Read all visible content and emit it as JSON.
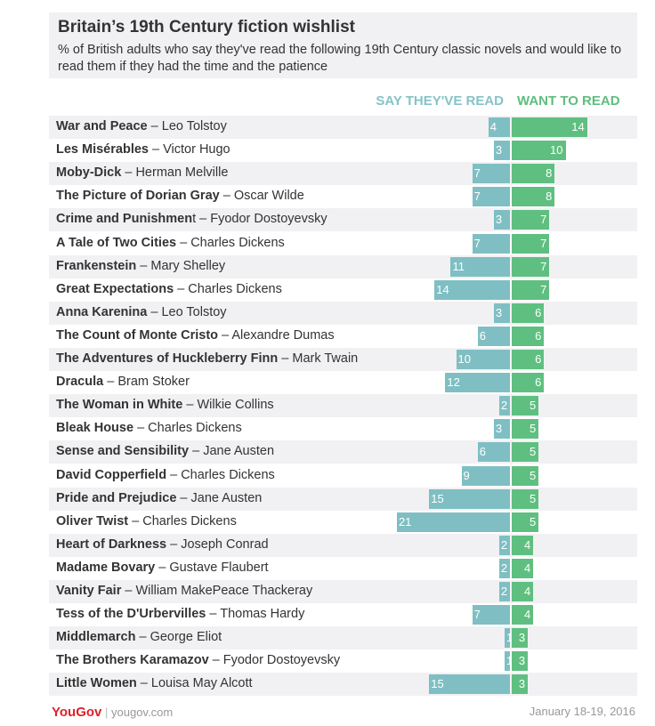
{
  "chart_data": {
    "type": "bar",
    "title": "Britain’s 19th Century fiction wishlist",
    "subtitle": "% of British adults who say they've read the following 19th Century classic novels and would like to read them if they had the time and the patience",
    "legend": [
      "SAY THEY'VE READ",
      "WANT TO READ"
    ],
    "colors": {
      "read": "#7fbfc3",
      "want": "#5fbf80",
      "read_header": "#86c3c7",
      "want_header": "#5fbd7f"
    },
    "categories": [
      {
        "title": "War and Peace",
        "author": "Leo Tolstoy"
      },
      {
        "title": "Les Misérables",
        "author": "Victor Hugo"
      },
      {
        "title": "Moby-Dick",
        "author": "Herman Melville"
      },
      {
        "title": "The Picture of Dorian Gray",
        "author": "Oscar Wilde"
      },
      {
        "title": "Crime and Punishmen",
        "author": "t – Fyodor Dostoyevsky",
        "sep": ""
      },
      {
        "title": "A Tale of Two Cities",
        "author": "Charles Dickens"
      },
      {
        "title": "Frankenstein",
        "author": "Mary Shelley"
      },
      {
        "title": "Great Expectations",
        "author": "Charles Dickens"
      },
      {
        "title": "Anna Karenina",
        "author": "Leo Tolstoy"
      },
      {
        "title": "The Count of Monte Cristo",
        "author": "Alexandre Dumas"
      },
      {
        "title": "The Adventures of Huckleberry Finn",
        "author": "Mark Twain"
      },
      {
        "title": "Dracula",
        "author": "Bram Stoker"
      },
      {
        "title": "The Woman in White",
        "author": "Wilkie Collins"
      },
      {
        "title": "Bleak House",
        "author": "Charles Dickens"
      },
      {
        "title": "Sense and Sensibility",
        "author": "Jane Austen"
      },
      {
        "title": "David Copperfield",
        "author": "Charles Dickens"
      },
      {
        "title": "Pride and Prejudice",
        "author": "Jane Austen"
      },
      {
        "title": "Oliver Twist",
        "author": "Charles Dickens"
      },
      {
        "title": "Heart of Darkness",
        "author": "Joseph Conrad"
      },
      {
        "title": "Madame Bovary",
        "author": "Gustave Flaubert"
      },
      {
        "title": "Vanity Fair",
        "author": "William MakePeace Thackeray"
      },
      {
        "title": "Tess of the D'Urbervilles",
        "author": "Thomas Hardy"
      },
      {
        "title": "Middlemarch",
        "author": "George Eliot"
      },
      {
        "title": "The Brothers Karamazov",
        "author": "Fyodor Dostoyevsky"
      },
      {
        "title": "Little Women",
        "author": "Louisa May Alcott"
      }
    ],
    "series": [
      {
        "name": "SAY THEY'VE READ",
        "values": [
          4,
          3,
          7,
          7,
          3,
          7,
          11,
          14,
          3,
          6,
          10,
          12,
          2,
          3,
          6,
          9,
          15,
          21,
          2,
          2,
          2,
          7,
          1,
          1,
          15
        ]
      },
      {
        "name": "WANT TO READ",
        "values": [
          14,
          10,
          8,
          8,
          7,
          7,
          7,
          7,
          6,
          6,
          6,
          6,
          5,
          5,
          5,
          5,
          5,
          5,
          4,
          4,
          4,
          4,
          3,
          3,
          3
        ]
      }
    ]
  },
  "footer": {
    "brand": "YouGov",
    "site": "yougov.com",
    "date": "January 18-19, 2016"
  }
}
